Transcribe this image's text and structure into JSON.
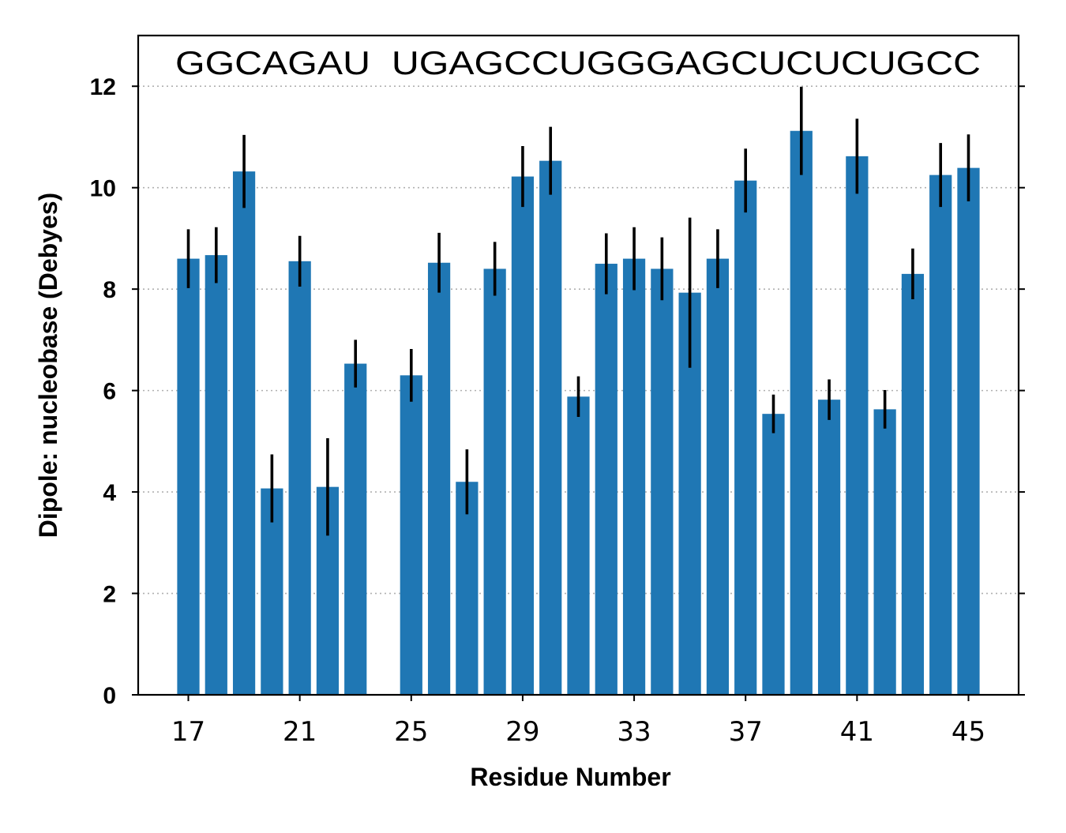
{
  "chart_data": {
    "type": "bar",
    "title": "",
    "xlabel": "Residue Number",
    "ylabel": "Dipole: nucleobase (Debyes)",
    "annotation": "GGCAGAU  UGAGCCUGGGAGCUCUCUGCC",
    "xlim": [
      15.2,
      46.8
    ],
    "ylim": [
      0,
      13
    ],
    "x_ticks": [
      17,
      21,
      25,
      29,
      33,
      37,
      41,
      45
    ],
    "y_ticks": [
      0,
      2,
      4,
      6,
      8,
      10,
      12
    ],
    "grid": "y-dotted",
    "bar_color": "#1f77b4",
    "error_color": "#000000",
    "x": [
      17,
      18,
      19,
      20,
      21,
      22,
      23,
      25,
      26,
      27,
      28,
      29,
      30,
      31,
      32,
      33,
      34,
      35,
      36,
      37,
      38,
      39,
      40,
      41,
      42,
      43,
      44,
      45
    ],
    "values": [
      8.6,
      8.67,
      10.32,
      4.07,
      8.55,
      4.1,
      6.53,
      6.3,
      8.52,
      4.2,
      8.4,
      10.22,
      10.53,
      5.88,
      8.5,
      8.6,
      8.4,
      7.93,
      8.6,
      10.14,
      5.54,
      11.12,
      5.82,
      10.62,
      5.63,
      8.3,
      10.25,
      10.39
    ],
    "errors": [
      0.58,
      0.55,
      0.72,
      0.67,
      0.5,
      0.96,
      0.47,
      0.52,
      0.59,
      0.64,
      0.53,
      0.6,
      0.67,
      0.4,
      0.6,
      0.62,
      0.62,
      1.48,
      0.58,
      0.63,
      0.38,
      0.87,
      0.4,
      0.74,
      0.38,
      0.5,
      0.63,
      0.66
    ]
  }
}
